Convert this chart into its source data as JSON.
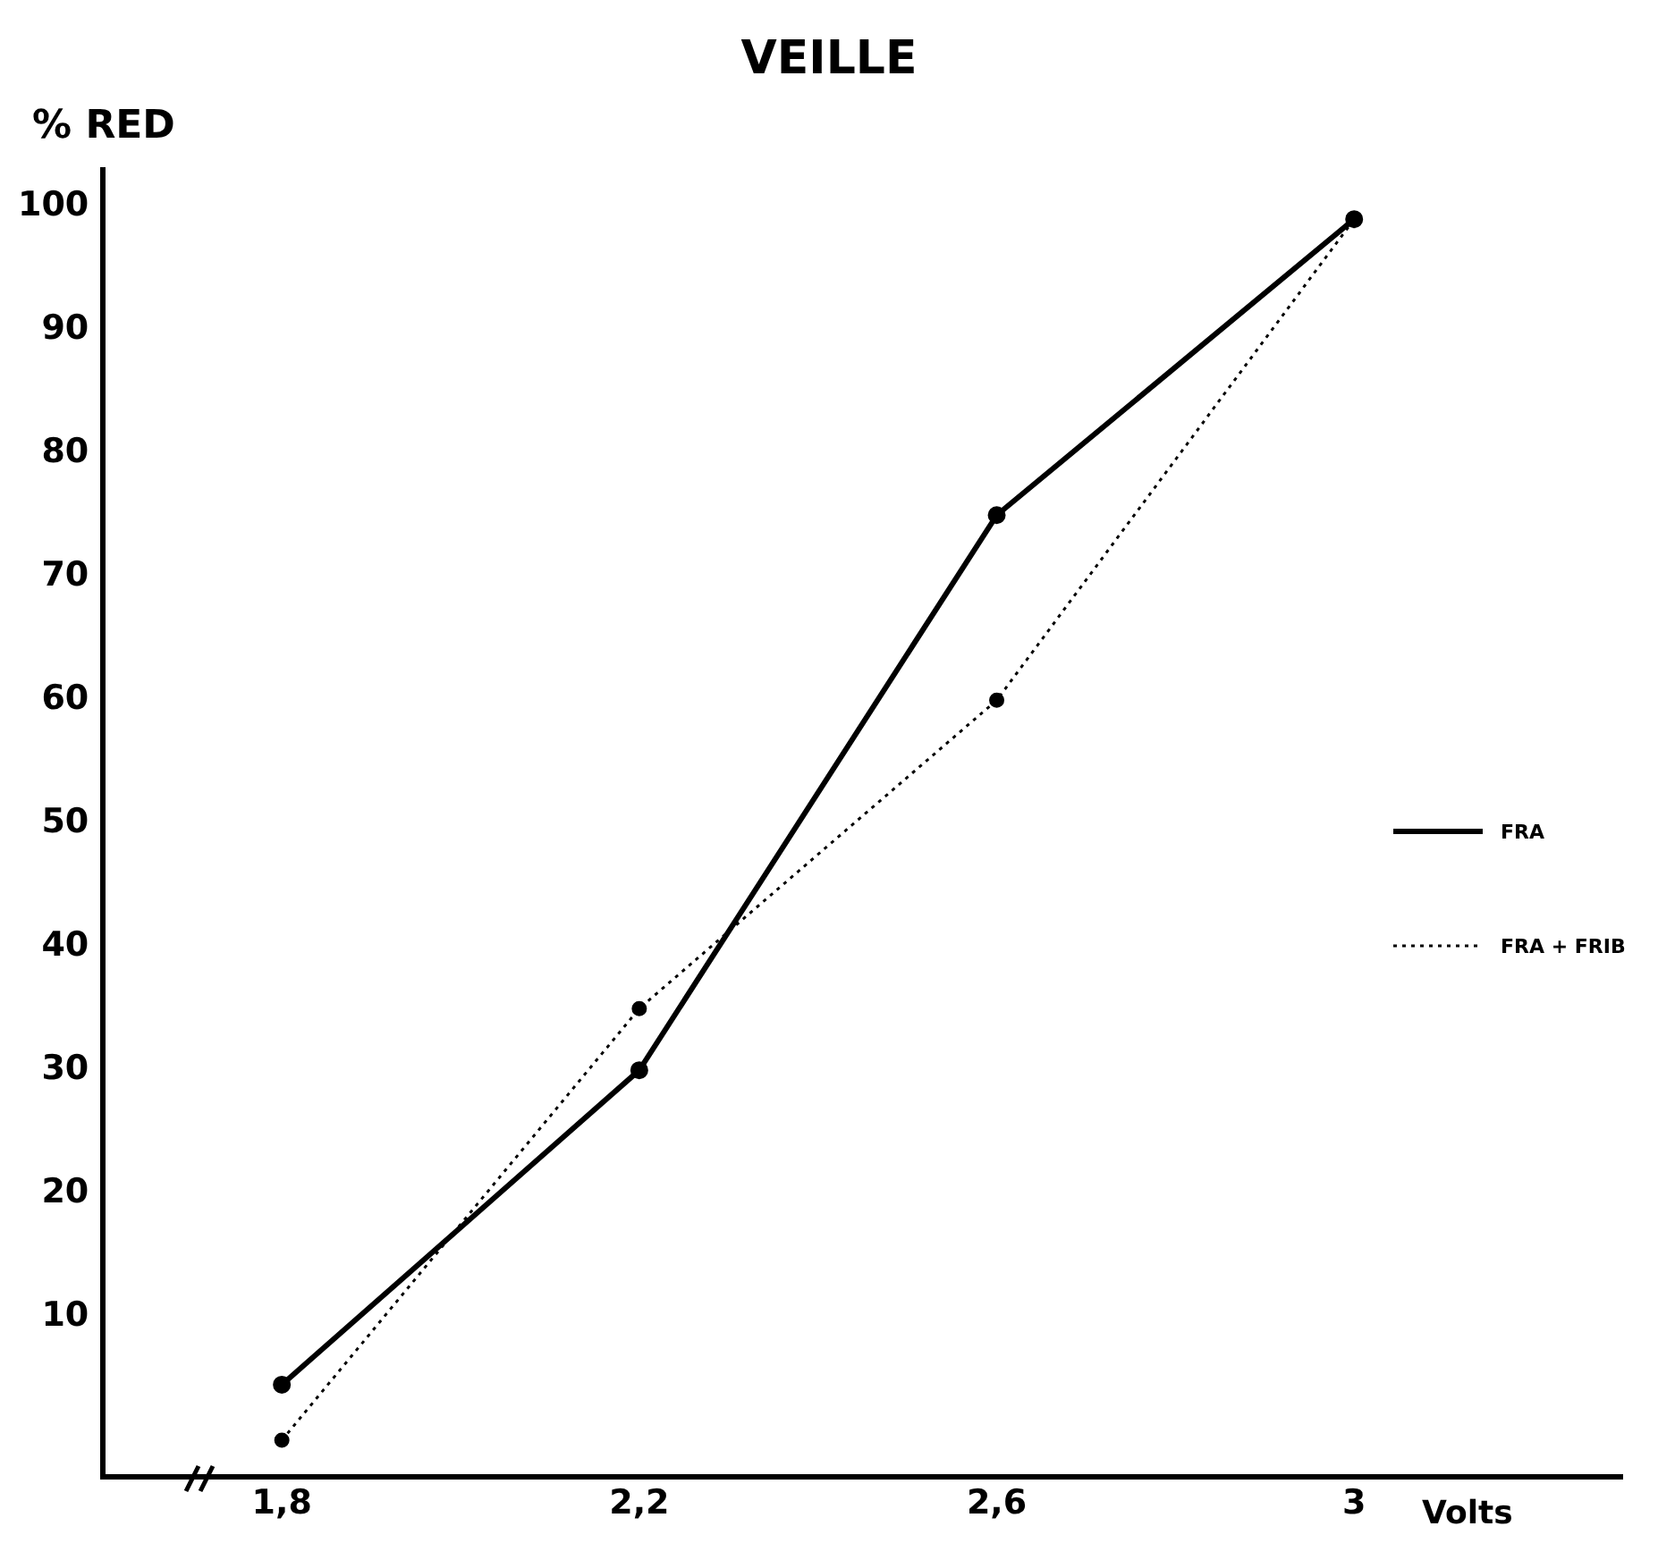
{
  "chart_data": {
    "type": "line",
    "title": "VEILLE",
    "xlabel": "Volts",
    "ylabel": "% RED",
    "x": [
      1.8,
      2.2,
      2.6,
      3
    ],
    "series": [
      {
        "name": "FRA",
        "color": "#000000",
        "line_style": "solid",
        "values": [
          4.5,
          30,
          75,
          99
        ]
      },
      {
        "name": "FRA + FRIB",
        "color": "#000000",
        "line_style": "dotted",
        "values": [
          0,
          35,
          60,
          99
        ]
      }
    ],
    "xlim": [
      1.6,
      3.3
    ],
    "xticks": [
      {
        "value": 1.8,
        "label": "1,8"
      },
      {
        "value": 2.2,
        "label": "2,2"
      },
      {
        "value": 2.6,
        "label": "2,6"
      },
      {
        "value": 3,
        "label": "3"
      }
    ],
    "ylim": [
      -3,
      103
    ],
    "yticks": [
      10,
      20,
      30,
      40,
      50,
      60,
      70,
      80,
      90,
      100
    ],
    "grid": false,
    "legend": "right",
    "marker": "circle"
  }
}
